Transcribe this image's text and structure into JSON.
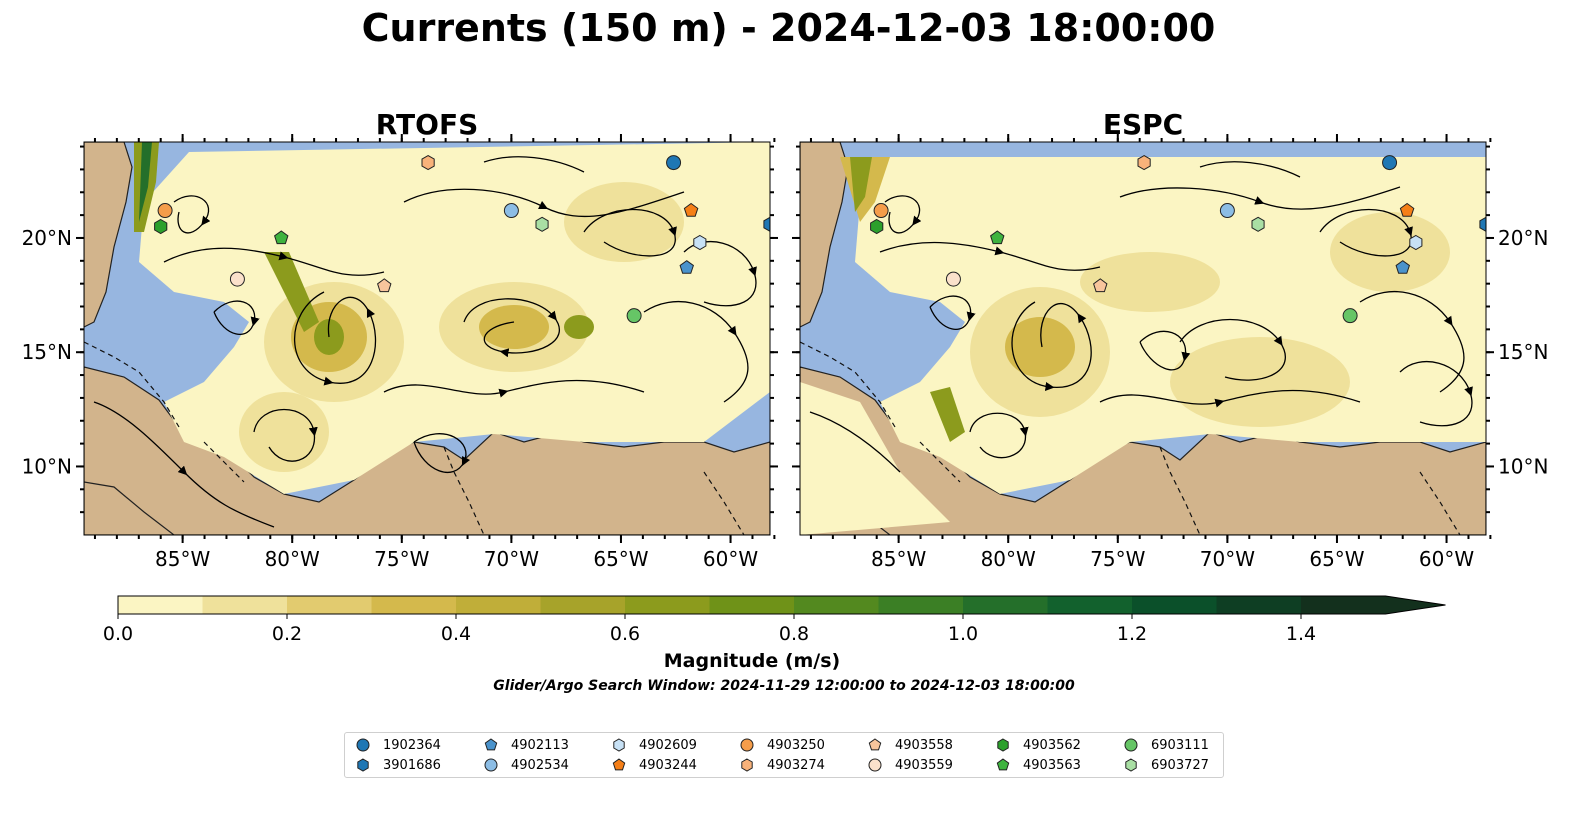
{
  "title": "Currents (150 m) - 2024-12-03 18:00:00",
  "panels": [
    {
      "title": "RTOFS"
    },
    {
      "title": "ESPC"
    }
  ],
  "axes": {
    "x_ticks": [
      "85°W",
      "80°W",
      "75°W",
      "70°W",
      "65°W",
      "60°W"
    ],
    "y_ticks": [
      "20°N",
      "15°N",
      "10°N"
    ],
    "lon_range": [
      -89.5,
      -58.2
    ],
    "lat_range": [
      7.0,
      24.2
    ]
  },
  "colorbar": {
    "label": "Magnitude (m/s)",
    "ticks": [
      "0.0",
      "0.2",
      "0.4",
      "0.6",
      "0.8",
      "1.0",
      "1.2",
      "1.4"
    ],
    "min": 0.0,
    "max": 1.5,
    "extend": "max",
    "colors": [
      "#fbf5c3",
      "#efe19b",
      "#e2cb6f",
      "#d4b94c",
      "#c0ae39",
      "#a7a32a",
      "#8c9b1d",
      "#6f9218",
      "#53891f",
      "#3b7f25",
      "#246f2a",
      "#12612d",
      "#0b502a",
      "#0e3e23",
      "#13301d"
    ]
  },
  "search_window": "Glider/Argo Search Window: 2024-11-29 12:00:00 to 2024-12-03 18:00:00",
  "colors": {
    "ocean": "#97b6e0",
    "land": "#d2b48c",
    "river": "#9ab0d0"
  },
  "legend": [
    {
      "id": "1902364",
      "marker": "circle",
      "color": "#1f77b4"
    },
    {
      "id": "3901686",
      "marker": "hexagon",
      "color": "#1f77b4"
    },
    {
      "id": "4902113",
      "marker": "pentagon",
      "color": "#4a93cc"
    },
    {
      "id": "4902534",
      "marker": "circle",
      "color": "#8cbde5"
    },
    {
      "id": "4902609",
      "marker": "hexagon",
      "color": "#c7e1f5"
    },
    {
      "id": "4903244",
      "marker": "pentagon",
      "color": "#f57f17"
    },
    {
      "id": "4903250",
      "marker": "circle",
      "color": "#f59d4a"
    },
    {
      "id": "4903274",
      "marker": "hexagon",
      "color": "#f8b27a"
    },
    {
      "id": "4903558",
      "marker": "pentagon",
      "color": "#f8c59c"
    },
    {
      "id": "4903559",
      "marker": "circle",
      "color": "#fbe1cb"
    },
    {
      "id": "4903562",
      "marker": "hexagon",
      "color": "#2ca02c"
    },
    {
      "id": "4903563",
      "marker": "pentagon",
      "color": "#3fb33f"
    },
    {
      "id": "6903111",
      "marker": "circle",
      "color": "#66c566"
    },
    {
      "id": "6903727",
      "marker": "hexagon",
      "color": "#a9dfa4"
    }
  ],
  "floats": {
    "RTOFS": [
      {
        "id": "1902364",
        "lon": -62.6,
        "lat": 23.3
      },
      {
        "id": "4903274",
        "lon": -73.8,
        "lat": 23.3
      },
      {
        "id": "4903250",
        "lon": -85.8,
        "lat": 21.2
      },
      {
        "id": "4902534",
        "lon": -70.0,
        "lat": 21.2
      },
      {
        "id": "6903727",
        "lon": -68.6,
        "lat": 20.6
      },
      {
        "id": "4903244",
        "lon": -61.8,
        "lat": 21.2
      },
      {
        "id": "3901686",
        "lon": -58.2,
        "lat": 20.6
      },
      {
        "id": "4903562",
        "lon": -86.0,
        "lat": 20.5
      },
      {
        "id": "4903563",
        "lon": -80.5,
        "lat": 20.0
      },
      {
        "id": "4902609",
        "lon": -61.4,
        "lat": 19.8
      },
      {
        "id": "4902113",
        "lon": -62.0,
        "lat": 18.7
      },
      {
        "id": "4903559",
        "lon": -82.5,
        "lat": 18.2
      },
      {
        "id": "4903558",
        "lon": -75.8,
        "lat": 17.9
      },
      {
        "id": "6903111",
        "lon": -64.4,
        "lat": 16.6
      }
    ],
    "ESPC": [
      {
        "id": "1902364",
        "lon": -62.6,
        "lat": 23.3
      },
      {
        "id": "4903274",
        "lon": -73.8,
        "lat": 23.3
      },
      {
        "id": "4903250",
        "lon": -85.8,
        "lat": 21.2
      },
      {
        "id": "4902534",
        "lon": -70.0,
        "lat": 21.2
      },
      {
        "id": "6903727",
        "lon": -68.6,
        "lat": 20.6
      },
      {
        "id": "4903244",
        "lon": -61.8,
        "lat": 21.2
      },
      {
        "id": "3901686",
        "lon": -58.2,
        "lat": 20.6
      },
      {
        "id": "4903562",
        "lon": -86.0,
        "lat": 20.5
      },
      {
        "id": "4903563",
        "lon": -80.5,
        "lat": 20.0
      },
      {
        "id": "4902609",
        "lon": -61.4,
        "lat": 19.8
      },
      {
        "id": "4902113",
        "lon": -62.0,
        "lat": 18.7
      },
      {
        "id": "4903559",
        "lon": -82.5,
        "lat": 18.2
      },
      {
        "id": "4903558",
        "lon": -75.8,
        "lat": 17.9
      },
      {
        "id": "6903111",
        "lon": -64.4,
        "lat": 16.6
      }
    ]
  }
}
